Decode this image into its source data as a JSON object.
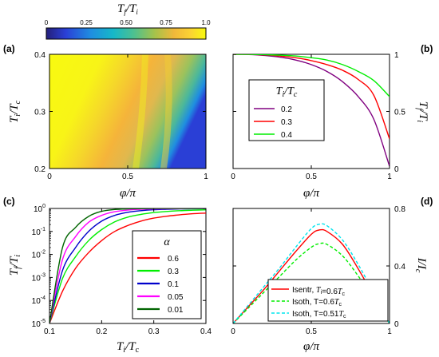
{
  "colorbar": {
    "title": "T_f/T_i",
    "ticks": [
      "0",
      "0.25",
      "0.50",
      "0.75",
      "1.0"
    ],
    "tick_values": [
      0,
      0.25,
      0.5,
      0.75,
      1.0
    ]
  },
  "colors": {
    "red": "#ff0000",
    "green": "#00ee00",
    "purple": "#800080",
    "blue": "#0000cc",
    "magenta": "#ff00ff",
    "darkgreen": "#006400",
    "cyan": "#00e5ee"
  },
  "chart_data": [
    {
      "panel": "(a)",
      "type": "heatmap",
      "xlabel": "φ/π",
      "ylabel": "T_i/T_c",
      "xlim": [
        0,
        1
      ],
      "ylim": [
        0.2,
        0.4
      ],
      "xticks": [
        "0",
        "0.5",
        "1"
      ],
      "xtick_values": [
        0,
        0.5,
        1
      ],
      "yticks": [
        "0.2",
        "0.3",
        "0.4"
      ],
      "ytick_values": [
        0.2,
        0.3,
        0.4
      ],
      "z_label": "T_f/T_i",
      "z_range": [
        0,
        1
      ]
    },
    {
      "panel": "(b)",
      "type": "line",
      "xlabel": "φ/π",
      "ylabel": "T_f/T_i",
      "xlim": [
        0,
        1
      ],
      "ylim": [
        0,
        1
      ],
      "xticks": [
        "0",
        "0.5",
        "1"
      ],
      "xtick_values": [
        0,
        0.5,
        1
      ],
      "yticks": [
        "0",
        "0.5",
        "1"
      ],
      "ytick_values": [
        0,
        0.5,
        1
      ],
      "legend_title": "T_i/T_c",
      "legend_position": "middle-left",
      "x": [
        0,
        0.1,
        0.2,
        0.3,
        0.4,
        0.5,
        0.6,
        0.7,
        0.8,
        0.9,
        1.0
      ],
      "series": [
        {
          "name": "0.2",
          "color": "#800080",
          "values": [
            1.0,
            0.998,
            0.99,
            0.975,
            0.95,
            0.91,
            0.85,
            0.76,
            0.63,
            0.43,
            0.02
          ]
        },
        {
          "name": "0.3",
          "color": "#ff0000",
          "values": [
            1.0,
            0.999,
            0.995,
            0.985,
            0.97,
            0.945,
            0.91,
            0.86,
            0.78,
            0.64,
            0.26
          ]
        },
        {
          "name": "0.4",
          "color": "#00ee00",
          "values": [
            1.0,
            0.999,
            0.997,
            0.992,
            0.985,
            0.97,
            0.95,
            0.91,
            0.85,
            0.77,
            0.63
          ]
        }
      ]
    },
    {
      "panel": "(c)",
      "type": "line",
      "xlabel": "T_i/T_c",
      "ylabel": "T_f/T_i",
      "xscale": "linear",
      "yscale": "log",
      "xlim": [
        0.1,
        0.4
      ],
      "ylim": [
        1e-05,
        1
      ],
      "xticks": [
        "0.1",
        "0.2",
        "0.3",
        "0.4"
      ],
      "xtick_values": [
        0.1,
        0.2,
        0.3,
        0.4
      ],
      "yticks": [
        "10^-5",
        "10^-4",
        "10^-3",
        "10^-2",
        "10^-1",
        "10^0"
      ],
      "ytick_values": [
        1e-05,
        0.0001,
        0.001,
        0.01,
        0.1,
        1
      ],
      "legend_title": "α",
      "legend_position": "bottom-right",
      "x": [
        0.1,
        0.125,
        0.15,
        0.175,
        0.2,
        0.225,
        0.25,
        0.275,
        0.3,
        0.325,
        0.35,
        0.375,
        0.4
      ],
      "series": [
        {
          "name": "0.6",
          "color": "#ff0000",
          "values": [
            1e-05,
            0.00025,
            0.0025,
            0.012,
            0.04,
            0.1,
            0.18,
            0.28,
            0.38,
            0.46,
            0.53,
            0.59,
            0.63
          ]
        },
        {
          "name": "0.3",
          "color": "#00ee00",
          "values": [
            1e-05,
            0.0009,
            0.008,
            0.04,
            0.12,
            0.26,
            0.42,
            0.55,
            0.66,
            0.74,
            0.8,
            0.84,
            0.87
          ]
        },
        {
          "name": "0.1",
          "color": "#0000cc",
          "values": [
            1e-05,
            0.002,
            0.02,
            0.1,
            0.28,
            0.5,
            0.68,
            0.8,
            0.88,
            0.92,
            0.95,
            0.97,
            0.98
          ]
        },
        {
          "name": "0.05",
          "color": "#ff00ff",
          "values": [
            1e-05,
            0.006,
            0.06,
            0.25,
            0.5,
            0.72,
            0.85,
            0.92,
            0.95,
            0.97,
            0.98,
            0.99,
            0.995
          ]
        },
        {
          "name": "0.01",
          "color": "#006400",
          "values": [
            1e-05,
            0.02,
            0.15,
            0.45,
            0.75,
            0.9,
            0.96,
            0.98,
            0.99,
            0.995,
            0.998,
            0.999,
            1.0
          ]
        }
      ]
    },
    {
      "panel": "(d)",
      "type": "line",
      "xlabel": "φ/π",
      "ylabel": "I/I_c",
      "xlim": [
        0,
        1
      ],
      "ylim": [
        0,
        0.8
      ],
      "xticks": [
        "0",
        "0.5",
        "1"
      ],
      "xtick_values": [
        0,
        0.5,
        1
      ],
      "yticks": [
        "0",
        "0.4",
        "0.8"
      ],
      "ytick_values": [
        0,
        0.4,
        0.8
      ],
      "legend_position": "bottom-center",
      "x": [
        0,
        0.1,
        0.2,
        0.3,
        0.4,
        0.5,
        0.55,
        0.6,
        0.7,
        0.8,
        0.9,
        1.0
      ],
      "series": [
        {
          "name": "Isentr, T_i=0.6T_c",
          "color": "#ff0000",
          "dash": "solid",
          "values": [
            0,
            0.12,
            0.24,
            0.37,
            0.5,
            0.62,
            0.65,
            0.64,
            0.55,
            0.38,
            0.19,
            0
          ]
        },
        {
          "name": "Isoth, T=0.6T_c",
          "color": "#00ee00",
          "dash": "dashed",
          "values": [
            0,
            0.11,
            0.22,
            0.33,
            0.44,
            0.53,
            0.555,
            0.55,
            0.47,
            0.33,
            0.17,
            0
          ]
        },
        {
          "name": "Isoth, T=0.51T_c",
          "color": "#00e5ee",
          "dash": "dashed",
          "values": [
            0,
            0.13,
            0.26,
            0.39,
            0.53,
            0.66,
            0.69,
            0.68,
            0.58,
            0.41,
            0.21,
            0
          ]
        }
      ]
    }
  ]
}
